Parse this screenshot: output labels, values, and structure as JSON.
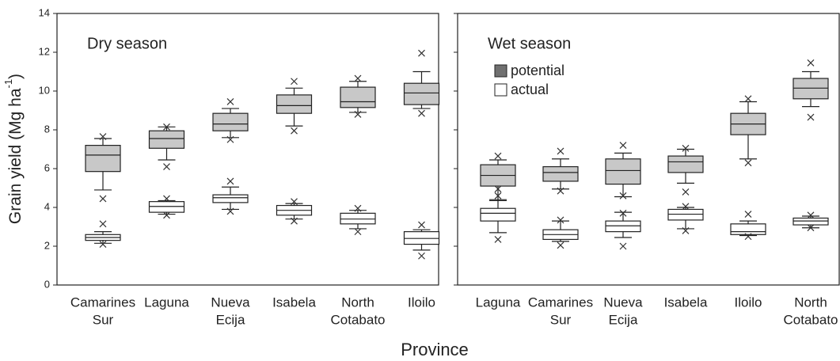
{
  "xlabel": "Province",
  "ylabel": {
    "text": "Grain yield  (Mg ha",
    "sup": "-1",
    "end": ")"
  },
  "chart_data": [
    {
      "type": "box",
      "title": "Dry season",
      "categories": [
        [
          "Camarines",
          "Sur"
        ],
        [
          "Laguna"
        ],
        [
          "Nueva",
          "Ecija"
        ],
        [
          "Isabela"
        ],
        [
          "North",
          "Cotabato"
        ],
        [
          "Iloilo"
        ]
      ],
      "ylim": [
        0,
        14
      ],
      "yticks": [
        0,
        2,
        4,
        6,
        8,
        10,
        12,
        14
      ],
      "ytick_labels": true,
      "series": [
        {
          "name": "potential",
          "color": "#c8c8c8",
          "legend_color": "#707070",
          "boxes": [
            {
              "whislo": 4.9,
              "q1": 5.85,
              "med": 6.7,
              "q3": 7.2,
              "whishi": 7.55,
              "fliers": [
                7.65,
                4.45
              ]
            },
            {
              "whislo": 6.45,
              "q1": 7.05,
              "med": 7.55,
              "q3": 7.95,
              "whishi": 8.15,
              "fliers": [
                8.15,
                6.1
              ]
            },
            {
              "whislo": 7.6,
              "q1": 7.95,
              "med": 8.3,
              "q3": 8.85,
              "whishi": 9.1,
              "fliers": [
                9.45,
                7.5
              ]
            },
            {
              "whislo": 8.2,
              "q1": 8.85,
              "med": 9.25,
              "q3": 9.8,
              "whishi": 10.15,
              "fliers": [
                10.5,
                7.95
              ]
            },
            {
              "whislo": 8.9,
              "q1": 9.15,
              "med": 9.45,
              "q3": 10.2,
              "whishi": 10.5,
              "fliers": [
                10.65,
                8.8
              ]
            },
            {
              "whislo": 9.1,
              "q1": 9.3,
              "med": 9.9,
              "q3": 10.4,
              "whishi": 11.0,
              "fliers": [
                11.95,
                8.85
              ]
            }
          ]
        },
        {
          "name": "actual",
          "color": "#ffffff",
          "legend_color": "#ffffff",
          "boxes": [
            {
              "whislo": 2.15,
              "q1": 2.3,
              "med": 2.45,
              "q3": 2.6,
              "whishi": 2.75,
              "fliers": [
                3.15,
                2.1
              ]
            },
            {
              "whislo": 3.65,
              "q1": 3.75,
              "med": 4.05,
              "q3": 4.3,
              "whishi": 4.35,
              "fliers": [
                4.45,
                3.6
              ]
            },
            {
              "whislo": 3.9,
              "q1": 4.25,
              "med": 4.5,
              "q3": 4.65,
              "whishi": 5.05,
              "fliers": [
                5.35,
                3.8
              ]
            },
            {
              "whislo": 3.4,
              "q1": 3.6,
              "med": 3.85,
              "q3": 4.1,
              "whishi": 4.2,
              "fliers": [
                4.3,
                3.3
              ]
            },
            {
              "whislo": 2.9,
              "q1": 3.15,
              "med": 3.4,
              "q3": 3.7,
              "whishi": 3.85,
              "fliers": [
                3.95,
                2.75
              ]
            },
            {
              "whislo": 1.8,
              "q1": 2.1,
              "med": 2.4,
              "q3": 2.75,
              "whishi": 2.85,
              "fliers": [
                3.1,
                1.5
              ]
            }
          ]
        }
      ]
    },
    {
      "type": "box",
      "title": "Wet season",
      "legend": true,
      "categories": [
        [
          "Laguna"
        ],
        [
          "Camarines",
          "Sur"
        ],
        [
          "Nueva",
          "Ecija"
        ],
        [
          "Isabela"
        ],
        [
          "Iloilo"
        ],
        [
          "North",
          "Cotabato"
        ]
      ],
      "ylim": [
        0,
        14
      ],
      "yticks": [
        0,
        2,
        4,
        6,
        8,
        10,
        12,
        14
      ],
      "ytick_labels": false,
      "series": [
        {
          "name": "potential",
          "color": "#c8c8c8",
          "legend_color": "#707070",
          "boxes": [
            {
              "whislo": 4.35,
              "q1": 5.1,
              "med": 5.65,
              "q3": 6.2,
              "whishi": 6.45,
              "fliers": [
                6.65,
                4.95,
                4.6
              ]
            },
            {
              "whislo": 4.95,
              "q1": 5.35,
              "med": 5.8,
              "q3": 6.1,
              "whishi": 6.5,
              "fliers": [
                6.9,
                4.85
              ]
            },
            {
              "whislo": 4.55,
              "q1": 5.2,
              "med": 5.9,
              "q3": 6.5,
              "whishi": 6.8,
              "fliers": [
                7.2,
                4.6
              ]
            },
            {
              "whislo": 5.25,
              "q1": 5.8,
              "med": 6.35,
              "q3": 6.65,
              "whishi": 7.0,
              "fliers": [
                7.05,
                4.8
              ]
            },
            {
              "whislo": 6.5,
              "q1": 7.75,
              "med": 8.3,
              "q3": 8.85,
              "whishi": 9.45,
              "fliers": [
                9.6,
                6.3
              ]
            },
            {
              "whislo": 9.2,
              "q1": 9.6,
              "med": 10.15,
              "q3": 10.65,
              "whishi": 11.0,
              "fliers": [
                11.45,
                8.65
              ]
            }
          ]
        },
        {
          "name": "actual",
          "color": "#ffffff",
          "legend_color": "#ffffff",
          "boxes": [
            {
              "whislo": 2.7,
              "q1": 3.3,
              "med": 3.7,
              "q3": 3.95,
              "whishi": 4.4,
              "fliers": [
                2.35
              ]
            },
            {
              "whislo": 2.25,
              "q1": 2.35,
              "med": 2.6,
              "q3": 2.85,
              "whishi": 3.3,
              "fliers": [
                3.35,
                2.05
              ]
            },
            {
              "whislo": 2.45,
              "q1": 2.75,
              "med": 3.05,
              "q3": 3.3,
              "whishi": 3.75,
              "fliers": [
                3.7,
                2.0
              ]
            },
            {
              "whislo": 2.9,
              "q1": 3.35,
              "med": 3.65,
              "q3": 3.9,
              "whishi": 4.0,
              "fliers": [
                4.05,
                2.8
              ]
            },
            {
              "whislo": 2.55,
              "q1": 2.6,
              "med": 2.75,
              "q3": 3.15,
              "whishi": 3.3,
              "fliers": [
                3.65,
                2.5
              ]
            },
            {
              "whislo": 2.95,
              "q1": 3.1,
              "med": 3.3,
              "q3": 3.45,
              "whishi": 3.55,
              "fliers": [
                3.6,
                2.95
              ]
            }
          ]
        }
      ]
    }
  ]
}
